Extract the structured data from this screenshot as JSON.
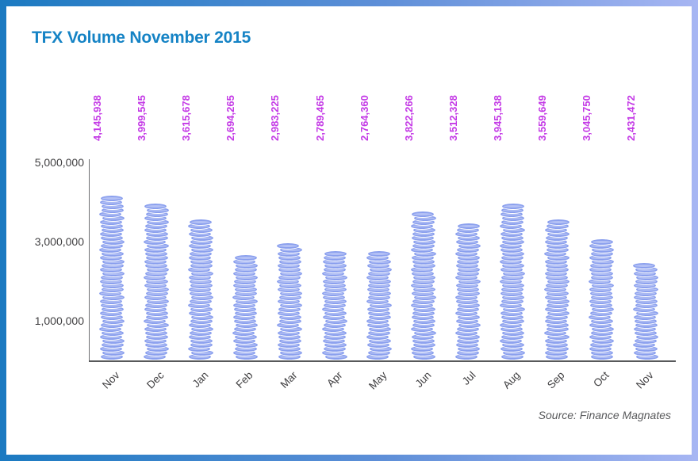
{
  "title": "TFX Volume November 2015",
  "source_note": "Source: Finance Magnates",
  "colors": {
    "title": "#1583c5",
    "value_label": "#c43ae6",
    "coin_fill": "#a6b5f2",
    "coin_rim": "#8ba0ee",
    "axis": "#58595b",
    "tick_text": "#414042",
    "frame_gradient_left": "#1b7ac1",
    "frame_gradient_right": "#a7b6f3"
  },
  "chart_data": {
    "type": "bar",
    "title": "TFX Volume November 2015",
    "bar_style": "coin-stack",
    "categories": [
      "Nov",
      "Dec",
      "Jan",
      "Feb",
      "Mar",
      "Apr",
      "May",
      "Jun",
      "Jul",
      "Aug",
      "Sep",
      "Oct",
      "Nov"
    ],
    "values": [
      4145938,
      3999545,
      3615678,
      2694265,
      2983225,
      2789465,
      2764360,
      3822266,
      3512328,
      3945138,
      3559649,
      3045750,
      2431472
    ],
    "value_labels": [
      "4,145,938",
      "3,999,545",
      "3,615,678",
      "2,694,265",
      "2,983,225",
      "2,789,465",
      "2,764,360",
      "3,822,266",
      "3,512,328",
      "3,945,138",
      "3,559,649",
      "3,045,750",
      "2,431,472"
    ],
    "xlabel": "",
    "ylabel": "",
    "ylim": [
      0,
      5000000
    ],
    "y_ticks": [
      {
        "value": 5000000,
        "label": "5,000,000"
      },
      {
        "value": 3000000,
        "label": "3,000,000"
      },
      {
        "value": 1000000,
        "label": "1,000,000"
      }
    ],
    "grid": false,
    "legend": "none",
    "source": "Source: Finance Magnates"
  }
}
